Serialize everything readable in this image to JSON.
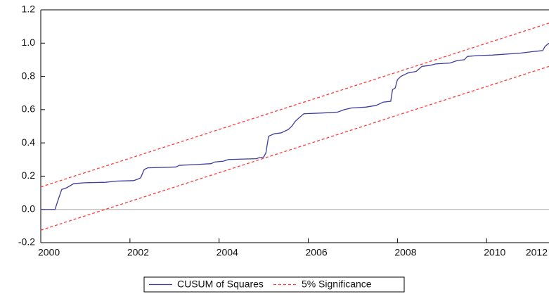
{
  "chart_data": {
    "type": "line",
    "x_scale": "linear",
    "xlim": [
      2000,
      2011.4
    ],
    "xticks": [
      2000,
      2002,
      2004,
      2006,
      2008,
      2010,
      2012
    ],
    "ylim": [
      -0.2,
      1.2
    ],
    "yticks": [
      1.2,
      {
        "value": 1,
        "label": "1.0"
      },
      0.8,
      0.6,
      0.4,
      0.2,
      {
        "value": 0,
        "label": "0.0"
      },
      -0.2
    ],
    "zero_line": true,
    "legend": "bottom",
    "series": [
      {
        "name": "CUSUM of Squares",
        "color": "#3c3c9c",
        "style": "solid",
        "x": [
          2000,
          2000.32,
          2000.38,
          2000.47,
          2000.58,
          2000.74,
          2000.98,
          2001.45,
          2001.69,
          2002.08,
          2002.16,
          2002.24,
          2002.32,
          2002.4,
          2003.03,
          2003.11,
          2003.5,
          2003.82,
          2003.9,
          2004.1,
          2004.21,
          2004.84,
          2004.89,
          2005,
          2005.05,
          2005.11,
          2005.24,
          2005.39,
          2005.55,
          2005.63,
          2005.71,
          2005.79,
          2005.9,
          2006.34,
          2006.66,
          2006.81,
          2006.97,
          2007.29,
          2007.52,
          2007.68,
          2007.85,
          2007.89,
          2007.95,
          2008,
          2008.08,
          2008.23,
          2008.42,
          2008.55,
          2008.71,
          2008.86,
          2009.18,
          2009.34,
          2009.5,
          2009.57,
          2009.81,
          2010.13,
          2010.76,
          2011.07,
          2011.26,
          2011.31,
          2011.4
        ],
        "values": [
          0,
          0,
          0.05,
          0.12,
          0.13,
          0.155,
          0.16,
          0.163,
          0.17,
          0.173,
          0.18,
          0.19,
          0.24,
          0.25,
          0.255,
          0.265,
          0.27,
          0.275,
          0.285,
          0.29,
          0.3,
          0.305,
          0.31,
          0.315,
          0.34,
          0.44,
          0.455,
          0.46,
          0.48,
          0.5,
          0.53,
          0.55,
          0.575,
          0.58,
          0.585,
          0.6,
          0.61,
          0.615,
          0.625,
          0.645,
          0.65,
          0.72,
          0.73,
          0.78,
          0.8,
          0.82,
          0.83,
          0.86,
          0.865,
          0.875,
          0.88,
          0.895,
          0.9,
          0.92,
          0.925,
          0.928,
          0.94,
          0.95,
          0.955,
          0.98,
          1
        ]
      },
      {
        "name": "5% Significance",
        "color": "#ff3b3b",
        "style": "dashed",
        "x": [
          2000,
          2011.4
        ],
        "upper": [
          0.135,
          1.12
        ],
        "lower": [
          -0.125,
          0.86
        ]
      }
    ]
  }
}
